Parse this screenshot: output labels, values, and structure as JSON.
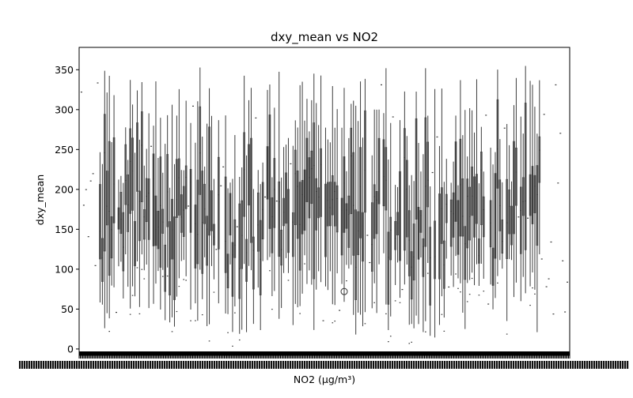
{
  "chart_data": {
    "type": "boxplot",
    "title": "dxy_mean vs NO2",
    "xlabel": "NO2 (µg/m³)",
    "ylabel": "dxy_mean",
    "ylim": [
      -8,
      378
    ],
    "y_ticks": [
      0,
      50,
      100,
      150,
      200,
      250,
      300,
      350
    ],
    "grid": false,
    "legend": "none",
    "box_color": "#3d3d3d",
    "x_ticks_note": "x-axis tick labels are dense and overlap into an unreadable band",
    "outliers": [
      {
        "x_index": 151,
        "y": 72
      }
    ],
    "notable_values": {
      "max_whisker": 357,
      "min_whisker": 10,
      "typical_median_range": [
        150,
        260
      ]
    }
  }
}
